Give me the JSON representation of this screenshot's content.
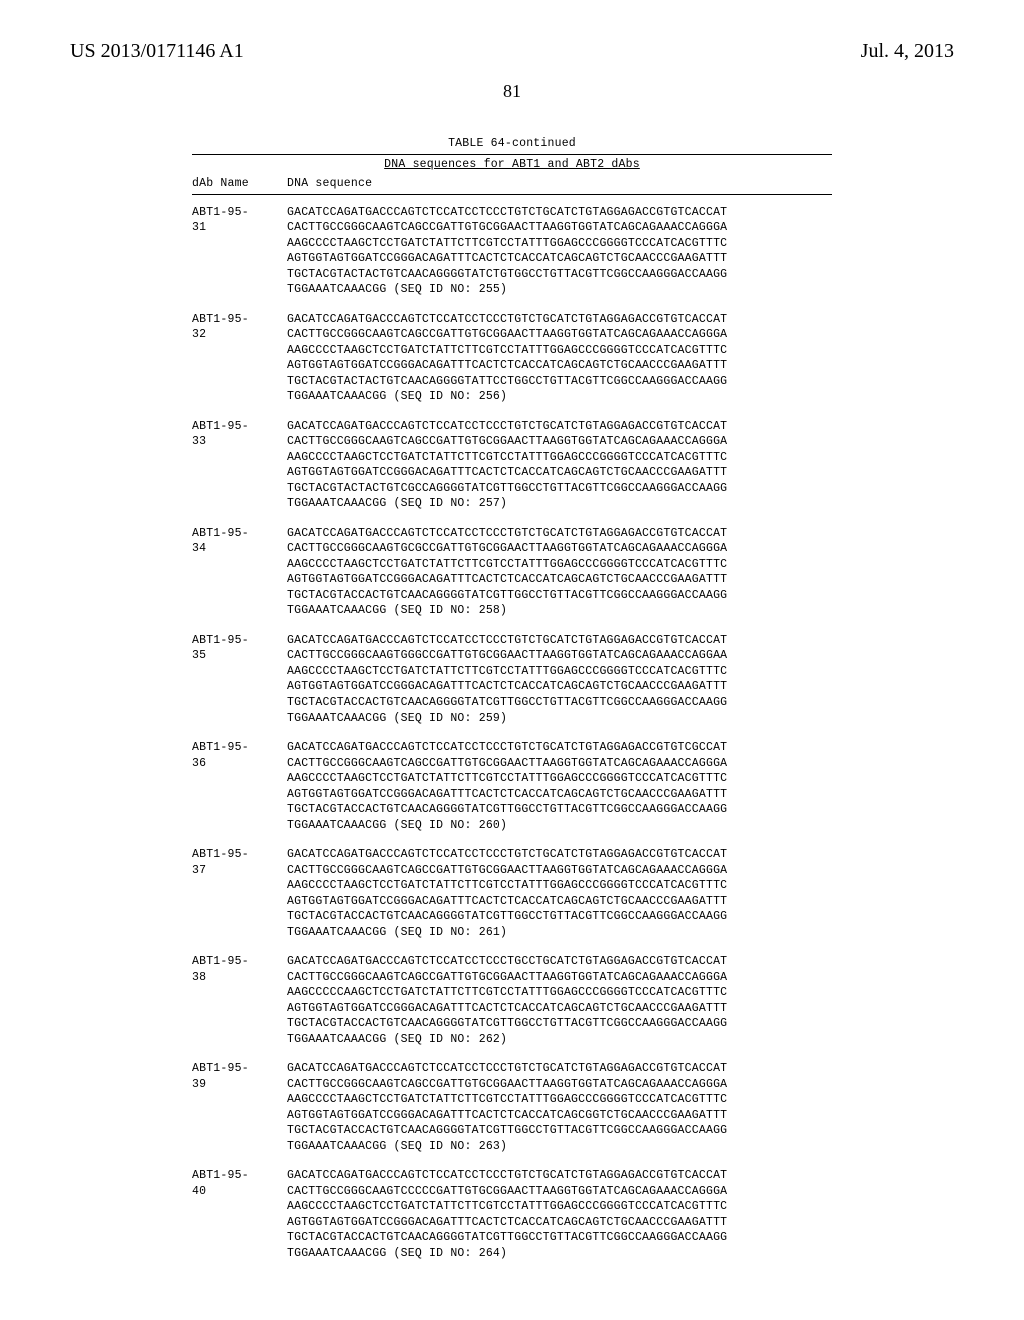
{
  "header": {
    "pub_number": "US 2013/0171146 A1",
    "pub_date": "Jul. 4, 2013"
  },
  "page_number": "81",
  "table": {
    "title": "TABLE 64-continued",
    "subtitle": "DNA sequences for ABT1 and ABT2 dAbs",
    "col1": "dAb Name",
    "col2": "DNA sequence"
  },
  "entries": [
    {
      "name": "ABT1-95-\n31",
      "seq": "GACATCCAGATGACCCAGTCTCCATCCTCCCTGTCTGCATCTGTAGGAGACCGTGTCACCAT\nCACTTGCCGGGCAAGTCAGCCGATTGTGCGGAACTTAAGGTGGTATCAGCAGAAACCAGGGA\nAAGCCCCTAAGCTCCTGATCTATTCTTCGTCCTATTTGGAGCCCGGGGTCCCATCACGTTTC\nAGTGGTAGTGGATCCGGGACAGATTTCACTCTCACCATCAGCAGTCTGCAACCCGAAGATTT\nTGCTACGTACTACTGTCAACAGGGGTATCTGTGGCCTGTTACGTTCGGCCAAGGGACCAAGG\nTGGAAATCAAACGG (SEQ ID NO: 255)"
    },
    {
      "name": "ABT1-95-\n32",
      "seq": "GACATCCAGATGACCCAGTCTCCATCCTCCCTGTCTGCATCTGTAGGAGACCGTGTCACCAT\nCACTTGCCGGGCAAGTCAGCCGATTGTGCGGAACTTAAGGTGGTATCAGCAGAAACCAGGGA\nAAGCCCCTAAGCTCCTGATCTATTCTTCGTCCTATTTGGAGCCCGGGGTCCCATCACGTTTC\nAGTGGTAGTGGATCCGGGACAGATTTCACTCTCACCATCAGCAGTCTGCAACCCGAAGATTT\nTGCTACGTACTACTGTCAACAGGGGTATTCCTGGCCTGTTACGTTCGGCCAAGGGACCAAGG\nTGGAAATCAAACGG (SEQ ID NO: 256)"
    },
    {
      "name": "ABT1-95-\n33",
      "seq": "GACATCCAGATGACCCAGTCTCCATCCTCCCTGTCTGCATCTGTAGGAGACCGTGTCACCAT\nCACTTGCCGGGCAAGTCAGCCGATTGTGCGGAACTTAAGGTGGTATCAGCAGAAACCAGGGA\nAAGCCCCTAAGCTCCTGATCTATTCTTCGTCCTATTTGGAGCCCGGGGTCCCATCACGTTTC\nAGTGGTAGTGGATCCGGGACAGATTTCACTCTCACCATCAGCAGTCTGCAACCCGAAGATTT\nTGCTACGTACTACTGTCGCCAGGGGTATCGTTGGCCTGTTACGTTCGGCCAAGGGACCAAGG\nTGGAAATCAAACGG (SEQ ID NO: 257)"
    },
    {
      "name": "ABT1-95-\n34",
      "seq": "GACATCCAGATGACCCAGTCTCCATCCTCCCTGTCTGCATCTGTAGGAGACCGTGTCACCAT\nCACTTGCCGGGCAAGTGCGCCGATTGTGCGGAACTTAAGGTGGTATCAGCAGAAACCAGGGA\nAAGCCCCTAAGCTCCTGATCTATTCTTCGTCCTATTTGGAGCCCGGGGTCCCATCACGTTTC\nAGTGGTAGTGGATCCGGGACAGATTTCACTCTCACCATCAGCAGTCTGCAACCCGAAGATTT\nTGCTACGTACCACTGTCAACAGGGGTATCGTTGGCCTGTTACGTTCGGCCAAGGGACCAAGG\nTGGAAATCAAACGG (SEQ ID NO: 258)"
    },
    {
      "name": "ABT1-95-\n35",
      "seq": "GACATCCAGATGACCCAGTCTCCATCCTCCCTGTCTGCATCTGTAGGAGACCGTGTCACCAT\nCACTTGCCGGGCAAGTGGGCCGATTGTGCGGAACTTAAGGTGGTATCAGCAGAAACCAGGAA\nAAGCCCCTAAGCTCCTGATCTATTCTTCGTCCTATTTGGAGCCCGGGGTCCCATCACGTTTC\nAGTGGTAGTGGATCCGGGACAGATTTCACTCTCACCATCAGCAGTCTGCAACCCGAAGATTT\nTGCTACGTACCACTGTCAACAGGGGTATCGTTGGCCTGTTACGTTCGGCCAAGGGACCAAGG\nTGGAAATCAAACGG (SEQ ID NO: 259)"
    },
    {
      "name": "ABT1-95-\n36",
      "seq": "GACATCCAGATGACCCAGTCTCCATCCTCCCTGTCTGCATCTGTAGGAGACCGTGTCGCCAT\nCACTTGCCGGGCAAGTCAGCCGATTGTGCGGAACTTAAGGTGGTATCAGCAGAAACCAGGGA\nAAGCCCCTAAGCTCCTGATCTATTCTTCGTCCTATTTGGAGCCCGGGGTCCCATCACGTTTC\nAGTGGTAGTGGATCCGGGACAGATTTCACTCTCACCATCAGCAGTCTGCAACCCGAAGATTT\nTGCTACGTACCACTGTCAACAGGGGTATCGTTGGCCTGTTACGTTCGGCCAAGGGACCAAGG\nTGGAAATCAAACGG (SEQ ID NO: 260)"
    },
    {
      "name": "ABT1-95-\n37",
      "seq": "GACATCCAGATGACCCAGTCTCCATCCTCCCTGTCTGCATCTGTAGGAGACCGTGTCACCAT\nCACTTGCCGGGCAAGTCAGCCGATTGTGCGGAACTTAAGGTGGTATCAGCAGAAACCAGGGA\nAAGCCCCTAAGCTCCTGATCTATTCTTCGTCCTATTTGGAGCCCGGGGTCCCATCACGTTTC\nAGTGGTAGTGGATCCGGGACAGATTTCACTCTCACCATCAGCAGTCTGCAACCCGAAGATTT\nTGCTACGTACCACTGTCAACAGGGGTATCGTTGGCCTGTTACGTTCGGCCAAGGGACCAAGG\nTGGAAATCAAACGG (SEQ ID NO: 261)"
    },
    {
      "name": "ABT1-95-\n38",
      "seq": "GACATCCAGATGACCCAGTCTCCATCCTCCCTGCCTGCATCTGTAGGAGACCGTGTCACCAT\nCACTTGCCGGGCAAGTCAGCCGATTGTGCGGAACTTAAGGTGGTATCAGCAGAAACCAGGGA\nAAGCCCCCAAGCTCCTGATCTATTCTTCGTCCTATTTGGAGCCCGGGGTCCCATCACGTTTC\nAGTGGTAGTGGATCCGGGACAGATTTCACTCTCACCATCAGCAGTCTGCAACCCGAAGATTT\nTGCTACGTACCACTGTCAACAGGGGTATCGTTGGCCTGTTACGTTCGGCCAAGGGACCAAGG\nTGGAAATCAAACGG (SEQ ID NO: 262)"
    },
    {
      "name": "ABT1-95-\n39",
      "seq": "GACATCCAGATGACCCAGTCTCCATCCTCCCTGTCTGCATCTGTAGGAGACCGTGTCACCAT\nCACTTGCCGGGCAAGTCAGCCGATTGTGCGGAACTTAAGGTGGTATCAGCAGAAACCAGGGA\nAAGCCCCTAAGCTCCTGATCTATTCTTCGTCCTATTTGGAGCCCGGGGTCCCATCACGTTTC\nAGTGGTAGTGGATCCGGGACAGATTTCACTCTCACCATCAGCGGTCTGCAACCCGAAGATTT\nTGCTACGTACCACTGTCAACAGGGGTATCGTTGGCCTGTTACGTTCGGCCAAGGGACCAAGG\nTGGAAATCAAACGG (SEQ ID NO: 263)"
    },
    {
      "name": "ABT1-95-\n40",
      "seq": "GACATCCAGATGACCCAGTCTCCATCCTCCCTGTCTGCATCTGTAGGAGACCGTGTCACCAT\nCACTTGCCGGGCAAGTCCCCCGATTGTGCGGAACTTAAGGTGGTATCAGCAGAAACCAGGGA\nAAGCCCCTAAGCTCCTGATCTATTCTTCGTCCTATTTGGAGCCCGGGGTCCCATCACGTTTC\nAGTGGTAGTGGATCCGGGACAGATTTCACTCTCACCATCAGCAGTCTGCAACCCGAAGATTT\nTGCTACGTACCACTGTCAACAGGGGTATCGTTGGCCTGTTACGTTCGGCCAAGGGACCAAGG\nTGGAAATCAAACGG (SEQ ID NO: 264)"
    }
  ]
}
